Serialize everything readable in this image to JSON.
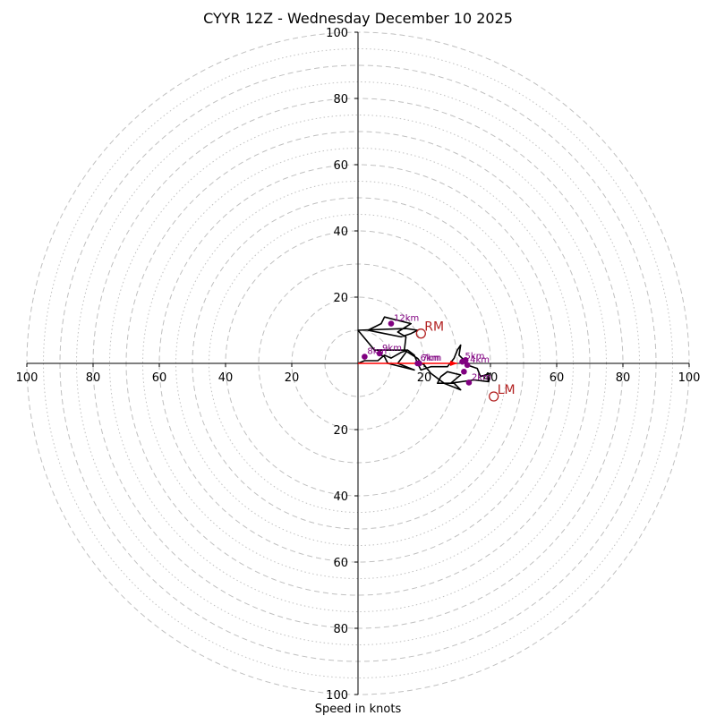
{
  "chart_data": {
    "type": "hodograph",
    "title": "CYYR 12Z - Wednesday December 10 2025",
    "xlabel": "Speed in knots",
    "ring_labels": [
      "20",
      "40",
      "60",
      "80",
      "100"
    ],
    "rmax": 100,
    "rings_major": [
      10,
      20,
      30,
      40,
      50,
      60,
      70,
      80,
      90,
      100
    ],
    "rings_minor": [
      45,
      55,
      65,
      75,
      85,
      95
    ],
    "line_color": "#000000",
    "marker_color": "#800080",
    "motion_color": "#b22222",
    "vector_color": "#ff0000",
    "ring_color": "#c0c0c0",
    "hodograph_trace": [
      [
        0,
        0
      ],
      [
        2,
        0.8
      ],
      [
        6,
        0.8
      ],
      [
        8,
        2.5
      ],
      [
        10,
        1.6
      ],
      [
        13,
        3.3
      ],
      [
        15,
        4
      ],
      [
        17,
        2.5
      ],
      [
        18,
        0
      ],
      [
        19,
        -2
      ],
      [
        22,
        -1
      ],
      [
        27,
        -1
      ],
      [
        29,
        1.5
      ],
      [
        30,
        4
      ],
      [
        31,
        5.5
      ],
      [
        30.5,
        2.5
      ],
      [
        32,
        1
      ],
      [
        33,
        -0.5
      ],
      [
        36,
        -1.5
      ],
      [
        37,
        -4
      ],
      [
        40,
        -3
      ],
      [
        39.5,
        -5.5
      ],
      [
        35,
        -5
      ],
      [
        28,
        -6
      ],
      [
        31,
        -3.5
      ],
      [
        27,
        -2.5
      ],
      [
        25,
        -4
      ],
      [
        24,
        -6
      ],
      [
        29,
        -6
      ],
      [
        31,
        -8
      ],
      [
        26,
        -6
      ],
      [
        22,
        -3
      ],
      [
        20,
        -0.5
      ],
      [
        19,
        0.2
      ],
      [
        18,
        1.5
      ],
      [
        14,
        4
      ],
      [
        14.5,
        8
      ],
      [
        12,
        9.5
      ],
      [
        16,
        12
      ],
      [
        8,
        14
      ],
      [
        7,
        12
      ],
      [
        3,
        10
      ],
      [
        8,
        9
      ],
      [
        13,
        8
      ],
      [
        16,
        9
      ],
      [
        18,
        10
      ],
      [
        14.5,
        10.5
      ],
      [
        0,
        10
      ],
      [
        5,
        4
      ],
      [
        15,
        4
      ],
      [
        12,
        0
      ],
      [
        17,
        -2
      ],
      [
        9,
        0
      ],
      [
        8,
        2
      ],
      [
        6,
        3
      ]
    ],
    "height_markers": [
      {
        "label": "2km",
        "u": 33.5,
        "v": -5.8
      },
      {
        "label": "",
        "u": 32,
        "v": -2.5
      },
      {
        "label": "4km",
        "u": 33,
        "v": -0.5
      },
      {
        "label": "5km",
        "u": 31.5,
        "v": 0.5
      },
      {
        "label": "",
        "u": 32.5,
        "v": 1
      },
      {
        "label": "6km",
        "u": 18,
        "v": 0
      },
      {
        "label": "7km",
        "u": 18.5,
        "v": 0
      },
      {
        "label": "9km",
        "u": 6.5,
        "v": 3
      },
      {
        "label": "8km",
        "u": 2,
        "v": 2
      },
      {
        "label": "12km",
        "u": 10,
        "v": 12
      }
    ],
    "storm_motion": {
      "RM": {
        "label": "RM",
        "u": 19,
        "v": 9
      },
      "LM": {
        "label": "LM",
        "u": 41,
        "v": -10
      },
      "mean": {
        "u": 30,
        "v": 0
      }
    }
  }
}
